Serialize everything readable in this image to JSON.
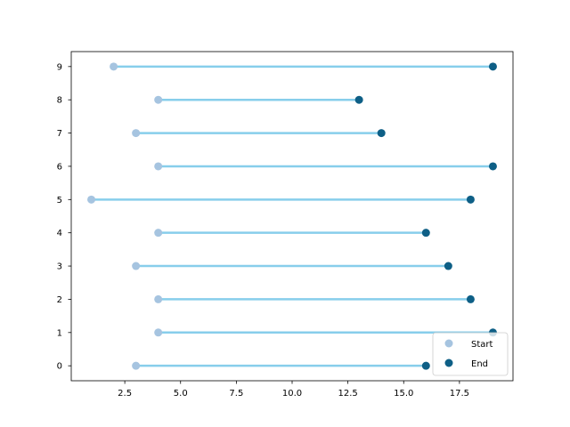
{
  "chart_data": {
    "type": "dumbbell",
    "title": "",
    "xlabel": "",
    "ylabel": "",
    "xlim": [
      0.1,
      19.9
    ],
    "ylim": [
      -0.45,
      9.45
    ],
    "x_ticks": [
      2.5,
      5.0,
      7.5,
      10.0,
      12.5,
      15.0,
      17.5
    ],
    "x_tick_labels": [
      "2.5",
      "5.0",
      "7.5",
      "10.0",
      "12.5",
      "15.0",
      "17.5"
    ],
    "y_ticks": [
      0,
      1,
      2,
      3,
      4,
      5,
      6,
      7,
      8,
      9
    ],
    "y_tick_labels": [
      "0",
      "1",
      "2",
      "3",
      "4",
      "5",
      "6",
      "7",
      "8",
      "9"
    ],
    "categories": [
      0,
      1,
      2,
      3,
      4,
      5,
      6,
      7,
      8,
      9
    ],
    "series": [
      {
        "name": "Start",
        "values": [
          3,
          4,
          4,
          3,
          4,
          1,
          4,
          3,
          4,
          2
        ]
      },
      {
        "name": "End",
        "values": [
          16,
          19,
          18,
          17,
          16,
          18,
          19,
          14,
          13,
          19
        ]
      }
    ],
    "grid": false,
    "legend_position": "lower-right",
    "colors": {
      "connector": "#87ceeb",
      "start": "#a6c4e0",
      "end": "#0e5f86"
    }
  }
}
